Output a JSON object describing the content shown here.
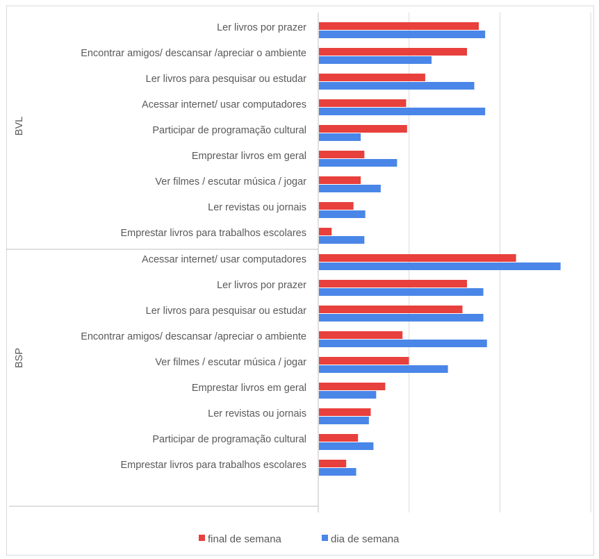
{
  "chart_data": {
    "type": "bar",
    "orientation": "horizontal",
    "grid": true,
    "legend_position": "bottom",
    "xlim": [
      0,
      30
    ],
    "x_tick_labels_shown": false,
    "series": [
      {
        "name": "final de semana",
        "color": "#e8403c"
      },
      {
        "name": "dia de semana",
        "color": "#4a86e8"
      }
    ],
    "groups": [
      {
        "name": "BVL",
        "categories": [
          "Ler livros por prazer",
          "Encontrar amigos/ descansar /apreciar o ambiente",
          "Ler livros para pesquisar ou estudar",
          "Acessar internet/ usar computadores",
          "Participar de programação cultural",
          "Emprestar livros em geral",
          "Ver filmes / escutar música / jogar",
          "Ler revistas ou jornais",
          "Emprestar livros para trabalhos escolares"
        ],
        "final_de_semana": [
          17.6,
          16.3,
          11.7,
          9.6,
          9.7,
          5.0,
          4.6,
          3.8,
          1.4
        ],
        "dia_de_semana": [
          18.3,
          12.4,
          17.1,
          18.3,
          4.6,
          8.6,
          6.8,
          5.1,
          5.0
        ]
      },
      {
        "name": "BSP",
        "categories": [
          "Acessar internet/ usar computadores",
          "Ler livros por prazer",
          "Ler livros para pesquisar ou estudar",
          "Encontrar amigos/ descansar /apreciar o ambiente",
          "Ver filmes / escutar música / jogar",
          "Emprestar livros em geral",
          "Ler revistas ou jornais",
          "Participar de programação cultural",
          "Emprestar livros para trabalhos escolares"
        ],
        "final_de_semana": [
          21.7,
          16.3,
          15.8,
          9.2,
          9.9,
          7.3,
          5.7,
          4.3,
          3.0
        ],
        "dia_de_semana": [
          26.6,
          18.1,
          18.1,
          18.5,
          14.2,
          6.3,
          5.5,
          6.0,
          4.1
        ]
      }
    ]
  }
}
